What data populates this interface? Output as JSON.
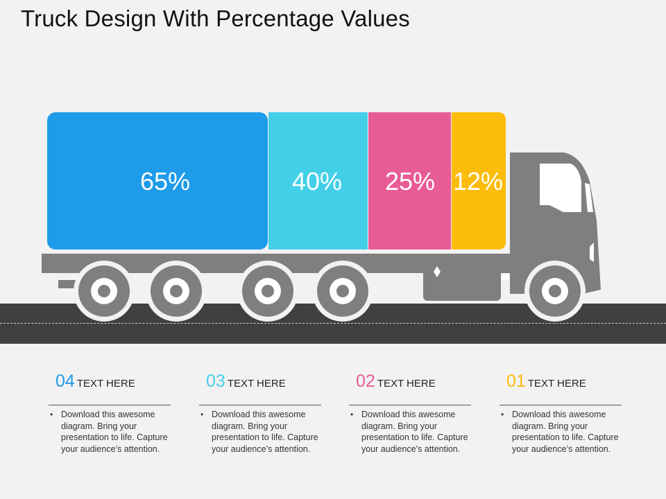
{
  "title": "Truck Design With Percentage Values",
  "colors": {
    "blue": "#1e9be9",
    "cyan": "#44cfe9",
    "pink": "#e85c96",
    "yellow": "#fcbc0b",
    "truck_gray": "#7f7f7f",
    "road": "#404040"
  },
  "chart_data": {
    "type": "bar",
    "title": "Truck Design With Percentage Values",
    "categories": [
      "04",
      "03",
      "02",
      "01"
    ],
    "values": [
      65,
      40,
      25,
      12
    ],
    "labels": [
      "65%",
      "40%",
      "25%",
      "12%"
    ]
  },
  "items": [
    {
      "number": "04",
      "title": "TEXT HERE",
      "body": "Download this awesome diagram. Bring your presentation to life. Capture your audience’s attention."
    },
    {
      "number": "03",
      "title": "TEXT HERE",
      "body": "Download this awesome diagram. Bring your presentation to life. Capture your audience’s attention."
    },
    {
      "number": "02",
      "title": "TEXT HERE",
      "body": "Download this awesome diagram. Bring your presentation to life. Capture your audience’s attention."
    },
    {
      "number": "01",
      "title": "TEXT HERE",
      "body": "Download this awesome diagram. Bring your presentation to life. Capture your audience’s attention."
    }
  ]
}
